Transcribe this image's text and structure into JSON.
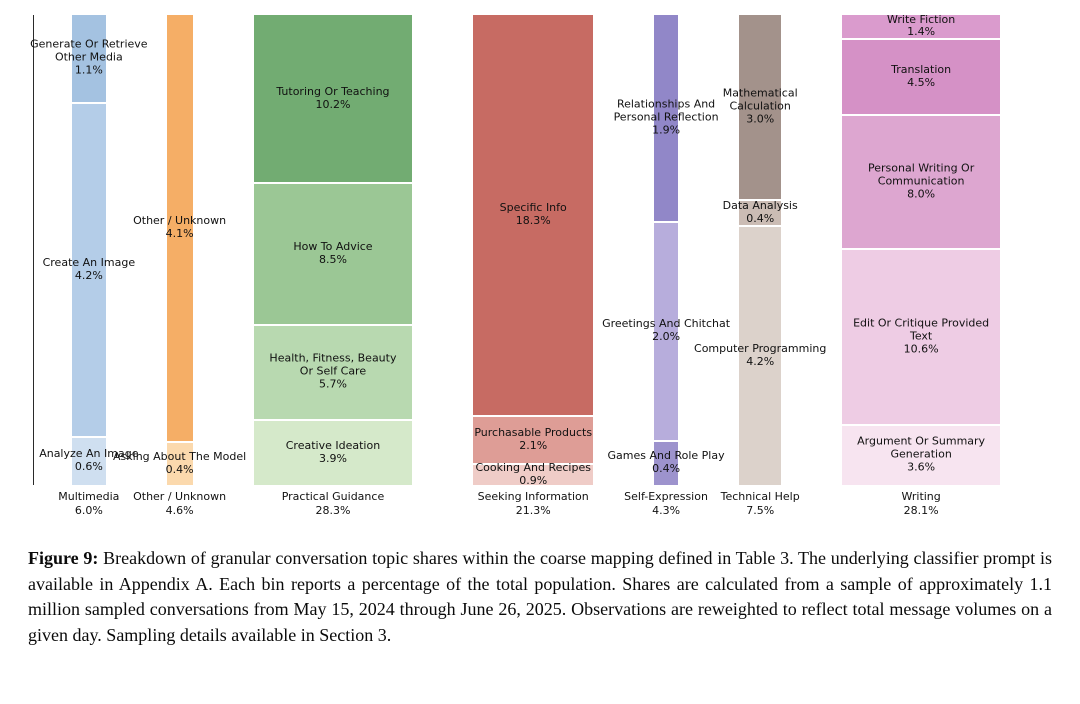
{
  "caption": {
    "label": "Figure 9:",
    "text": "Breakdown of granular conversation topic shares within the coarse mapping defined in Table 3. The underlying classifier prompt is available in Appendix A. Each bin reports a percentage of the total population. Shares are calculated from a sample of approximately 1.1 million sampled conversations from May 15, 2024 through June 26, 2025. Observations are reweighted to reflect total message volumes on a given day. Sampling details available in Section 3."
  },
  "chart_data": {
    "type": "bar",
    "variant": "marimekko-stacked-topic-shares",
    "title": "",
    "unit": "percent of total population",
    "legend": "none",
    "columns": [
      {
        "label": "Multimedia",
        "total_pct": "6.0%",
        "total_value": 6.0,
        "segments": [
          {
            "name": "Generate Or Retrieve Other Media",
            "pct": "1.1%",
            "value": 1.1,
            "color": "#a4c2e1"
          },
          {
            "name": "Create An Image",
            "pct": "4.2%",
            "value": 4.2,
            "color": "#b4cde8"
          },
          {
            "name": "Analyze An Image",
            "pct": "0.6%",
            "value": 0.6,
            "color": "#cfdff0"
          }
        ]
      },
      {
        "label": "Other / Unknown",
        "total_pct": "4.6%",
        "total_value": 4.6,
        "segments": [
          {
            "name": "Other / Unknown",
            "pct": "4.1%",
            "value": 4.1,
            "color": "#f5ae66"
          },
          {
            "name": "Asking About The Model",
            "pct": "0.4%",
            "value": 0.4,
            "color": "#fbd9ad"
          }
        ]
      },
      {
        "label": "Practical Guidance",
        "total_pct": "28.3%",
        "total_value": 28.3,
        "segments": [
          {
            "name": "Tutoring Or Teaching",
            "pct": "10.2%",
            "value": 10.2,
            "color": "#72ac72"
          },
          {
            "name": "How To Advice",
            "pct": "8.5%",
            "value": 8.5,
            "color": "#9bc795"
          },
          {
            "name": "Health, Fitness, Beauty Or Self Care",
            "pct": "5.7%",
            "value": 5.7,
            "color": "#b8d9b0"
          },
          {
            "name": "Creative Ideation",
            "pct": "3.9%",
            "value": 3.9,
            "color": "#d5e9ca"
          }
        ]
      },
      {
        "label": "Seeking Information",
        "total_pct": "21.3%",
        "total_value": 21.3,
        "segments": [
          {
            "name": "Specific Info",
            "pct": "18.3%",
            "value": 18.3,
            "color": "#c76b63"
          },
          {
            "name": "Purchasable Products",
            "pct": "2.1%",
            "value": 2.1,
            "color": "#de9d96"
          },
          {
            "name": "Cooking And Recipes",
            "pct": "0.9%",
            "value": 0.9,
            "color": "#efccc7"
          }
        ]
      },
      {
        "label": "Self-Expression",
        "total_pct": "4.3%",
        "total_value": 4.3,
        "segments": [
          {
            "name": "Relationships And Personal Reflection",
            "pct": "1.9%",
            "value": 1.9,
            "color": "#9187c8"
          },
          {
            "name": "Greetings And Chitchat",
            "pct": "2.0%",
            "value": 2.0,
            "color": "#b7addc"
          },
          {
            "name": "Games And Role Play",
            "pct": "0.4%",
            "value": 0.4,
            "color": "#9d93cd"
          }
        ]
      },
      {
        "label": "Technical Help",
        "total_pct": "7.5%",
        "total_value": 7.5,
        "segments": [
          {
            "name": "Mathematical Calculation",
            "pct": "3.0%",
            "value": 3.0,
            "color": "#a3928b"
          },
          {
            "name": "Data Analysis",
            "pct": "0.4%",
            "value": 0.4,
            "color": "#cbbcb4"
          },
          {
            "name": "Computer Programming",
            "pct": "4.2%",
            "value": 4.2,
            "color": "#dcd2cb"
          }
        ]
      },
      {
        "label": "Writing",
        "total_pct": "28.1%",
        "total_value": 28.1,
        "segments": [
          {
            "name": "Write Fiction",
            "pct": "1.4%",
            "value": 1.4,
            "color": "#da9bcd"
          },
          {
            "name": "Translation",
            "pct": "4.5%",
            "value": 4.5,
            "color": "#d591c6"
          },
          {
            "name": "Personal Writing Or Communication",
            "pct": "8.0%",
            "value": 8.0,
            "color": "#dda6d0"
          },
          {
            "name": "Edit Or Critique Provided Text",
            "pct": "10.6%",
            "value": 10.6,
            "color": "#eecce4"
          },
          {
            "name": "Argument Or Summary Generation",
            "pct": "3.6%",
            "value": 3.6,
            "color": "#f7e4f0"
          }
        ]
      }
    ]
  }
}
